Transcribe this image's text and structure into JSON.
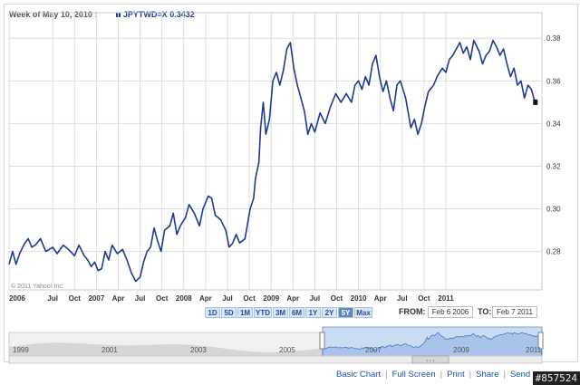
{
  "header": {
    "week_label": "Week of May 10, 2010 :",
    "symbol": "JPYTWD=X",
    "value": "0.3432"
  },
  "chart_data": {
    "type": "line",
    "title": "",
    "series": [
      {
        "name": "JPYTWD=X",
        "points": [
          [
            2006.0,
            0.274
          ],
          [
            2006.04,
            0.28
          ],
          [
            2006.08,
            0.274
          ],
          [
            2006.12,
            0.279
          ],
          [
            2006.18,
            0.284
          ],
          [
            2006.22,
            0.286
          ],
          [
            2006.26,
            0.282
          ],
          [
            2006.3,
            0.283
          ],
          [
            2006.36,
            0.286
          ],
          [
            2006.42,
            0.28
          ],
          [
            2006.5,
            0.282
          ],
          [
            2006.55,
            0.279
          ],
          [
            2006.62,
            0.283
          ],
          [
            2006.68,
            0.281
          ],
          [
            2006.75,
            0.278
          ],
          [
            2006.8,
            0.283
          ],
          [
            2006.86,
            0.278
          ],
          [
            2006.9,
            0.276
          ],
          [
            2006.94,
            0.273
          ],
          [
            2006.98,
            0.275
          ],
          [
            2007.02,
            0.271
          ],
          [
            2007.06,
            0.272
          ],
          [
            2007.1,
            0.28
          ],
          [
            2007.14,
            0.276
          ],
          [
            2007.18,
            0.283
          ],
          [
            2007.24,
            0.279
          ],
          [
            2007.3,
            0.281
          ],
          [
            2007.35,
            0.276
          ],
          [
            2007.4,
            0.27
          ],
          [
            2007.45,
            0.266
          ],
          [
            2007.5,
            0.268
          ],
          [
            2007.54,
            0.275
          ],
          [
            2007.58,
            0.28
          ],
          [
            2007.62,
            0.282
          ],
          [
            2007.66,
            0.291
          ],
          [
            2007.7,
            0.285
          ],
          [
            2007.74,
            0.28
          ],
          [
            2007.78,
            0.29
          ],
          [
            2007.84,
            0.292
          ],
          [
            2007.88,
            0.298
          ],
          [
            2007.92,
            0.288
          ],
          [
            2007.96,
            0.292
          ],
          [
            2008.02,
            0.296
          ],
          [
            2008.06,
            0.302
          ],
          [
            2008.12,
            0.298
          ],
          [
            2008.18,
            0.292
          ],
          [
            2008.22,
            0.3
          ],
          [
            2008.28,
            0.306
          ],
          [
            2008.32,
            0.305
          ],
          [
            2008.36,
            0.297
          ],
          [
            2008.42,
            0.295
          ],
          [
            2008.48,
            0.29
          ],
          [
            2008.52,
            0.282
          ],
          [
            2008.56,
            0.284
          ],
          [
            2008.6,
            0.288
          ],
          [
            2008.64,
            0.284
          ],
          [
            2008.7,
            0.286
          ],
          [
            2008.76,
            0.3
          ],
          [
            2008.8,
            0.305
          ],
          [
            2008.82,
            0.314
          ],
          [
            2008.86,
            0.322
          ],
          [
            2008.88,
            0.338
          ],
          [
            2008.91,
            0.35
          ],
          [
            2008.94,
            0.335
          ],
          [
            2008.98,
            0.342
          ],
          [
            2009.02,
            0.36
          ],
          [
            2009.06,
            0.364
          ],
          [
            2009.1,
            0.358
          ],
          [
            2009.14,
            0.365
          ],
          [
            2009.18,
            0.375
          ],
          [
            2009.22,
            0.378
          ],
          [
            2009.26,
            0.366
          ],
          [
            2009.3,
            0.358
          ],
          [
            2009.34,
            0.352
          ],
          [
            2009.38,
            0.346
          ],
          [
            2009.42,
            0.335
          ],
          [
            2009.46,
            0.34
          ],
          [
            2009.5,
            0.336
          ],
          [
            2009.56,
            0.345
          ],
          [
            2009.62,
            0.34
          ],
          [
            2009.68,
            0.348
          ],
          [
            2009.74,
            0.354
          ],
          [
            2009.8,
            0.35
          ],
          [
            2009.86,
            0.354
          ],
          [
            2009.92,
            0.35
          ],
          [
            2009.96,
            0.358
          ],
          [
            2010.0,
            0.36
          ],
          [
            2010.04,
            0.356
          ],
          [
            2010.08,
            0.362
          ],
          [
            2010.12,
            0.358
          ],
          [
            2010.16,
            0.368
          ],
          [
            2010.2,
            0.372
          ],
          [
            2010.24,
            0.362
          ],
          [
            2010.28,
            0.355
          ],
          [
            2010.32,
            0.36
          ],
          [
            2010.36,
            0.352
          ],
          [
            2010.4,
            0.346
          ],
          [
            2010.44,
            0.358
          ],
          [
            2010.48,
            0.36
          ],
          [
            2010.54,
            0.352
          ],
          [
            2010.6,
            0.338
          ],
          [
            2010.64,
            0.342
          ],
          [
            2010.68,
            0.335
          ],
          [
            2010.72,
            0.34
          ],
          [
            2010.76,
            0.348
          ],
          [
            2010.8,
            0.355
          ],
          [
            2010.86,
            0.358
          ],
          [
            2010.9,
            0.362
          ],
          [
            2010.96,
            0.366
          ],
          [
            2011.0,
            0.364
          ],
          [
            2011.04,
            0.37
          ],
          [
            2011.08,
            0.372
          ],
          [
            2011.12,
            0.375
          ],
          [
            2011.16,
            0.378
          ],
          [
            2011.2,
            0.373
          ],
          [
            2011.24,
            0.376
          ],
          [
            2011.28,
            0.37
          ],
          [
            2011.32,
            0.379
          ],
          [
            2011.38,
            0.374
          ],
          [
            2011.42,
            0.368
          ],
          [
            2011.46,
            0.372
          ],
          [
            2011.5,
            0.374
          ],
          [
            2011.54,
            0.379
          ],
          [
            2011.58,
            0.376
          ],
          [
            2011.62,
            0.372
          ],
          [
            2011.66,
            0.375
          ],
          [
            2011.7,
            0.368
          ],
          [
            2011.74,
            0.362
          ],
          [
            2011.78,
            0.366
          ],
          [
            2011.82,
            0.358
          ],
          [
            2011.86,
            0.36
          ],
          [
            2011.9,
            0.352
          ],
          [
            2011.94,
            0.358
          ],
          [
            2011.98,
            0.356
          ],
          [
            2012.02,
            0.35
          ]
        ]
      }
    ],
    "xlim": [
      2006.0,
      2012.1
    ],
    "ylim": [
      0.262,
      0.392
    ],
    "yticks": [
      0.28,
      0.3,
      0.32,
      0.34,
      0.36,
      0.38
    ],
    "ytick_labels": [
      "0.28",
      "0.30",
      "0.32",
      "0.34",
      "0.36",
      "0.38"
    ],
    "xticks": [
      {
        "x": 2006.0,
        "label": "2006"
      },
      {
        "x": 2006.5,
        "label": "Jul"
      },
      {
        "x": 2006.75,
        "label": "Oct"
      },
      {
        "x": 2007.0,
        "label": "2007"
      },
      {
        "x": 2007.25,
        "label": "Apr"
      },
      {
        "x": 2007.5,
        "label": "Jul"
      },
      {
        "x": 2007.75,
        "label": "Oct"
      },
      {
        "x": 2008.0,
        "label": "2008"
      },
      {
        "x": 2008.25,
        "label": "Apr"
      },
      {
        "x": 2008.5,
        "label": "Jul"
      },
      {
        "x": 2008.75,
        "label": "Oct"
      },
      {
        "x": 2009.0,
        "label": "2009"
      },
      {
        "x": 2009.25,
        "label": "Apr"
      },
      {
        "x": 2009.5,
        "label": "Jul"
      },
      {
        "x": 2009.75,
        "label": "Oct"
      },
      {
        "x": 2010.0,
        "label": "2010"
      },
      {
        "x": 2010.25,
        "label": "Apr"
      },
      {
        "x": 2010.5,
        "label": "Jul"
      },
      {
        "x": 2010.75,
        "label": "Oct"
      },
      {
        "x": 2011.0,
        "label": "2011"
      }
    ],
    "grid": true,
    "colors": {
      "line": "#1f3a93",
      "grid": "#dddddd"
    },
    "last_value_marker": true
  },
  "copyright": "© 2011 Yahoo! Inc.",
  "range_buttons": [
    {
      "label": "1D",
      "active": false
    },
    {
      "label": "5D",
      "active": false
    },
    {
      "label": "1M",
      "active": false
    },
    {
      "label": "YTD",
      "active": false
    },
    {
      "label": "3M",
      "active": false
    },
    {
      "label": "6M",
      "active": false
    },
    {
      "label": "1Y",
      "active": false
    },
    {
      "label": "2Y",
      "active": false
    },
    {
      "label": "5Y",
      "active": true
    },
    {
      "label": "Max",
      "active": false
    }
  ],
  "from_label": "FROM:",
  "from_value": "Feb 6 2006",
  "to_label": "TO:",
  "to_value": "Feb 7 2011",
  "navigator": {
    "year_labels": [
      "1999",
      "2001",
      "2003",
      "2005",
      "2007",
      "2009",
      "2011"
    ],
    "handle_glyph": "‹ ‹ ‹"
  },
  "footer": {
    "basic_chart": "Basic Chart",
    "full_screen": "Full Screen",
    "print": "Print",
    "share": "Share",
    "send": "Send"
  },
  "watermark": "#857524"
}
